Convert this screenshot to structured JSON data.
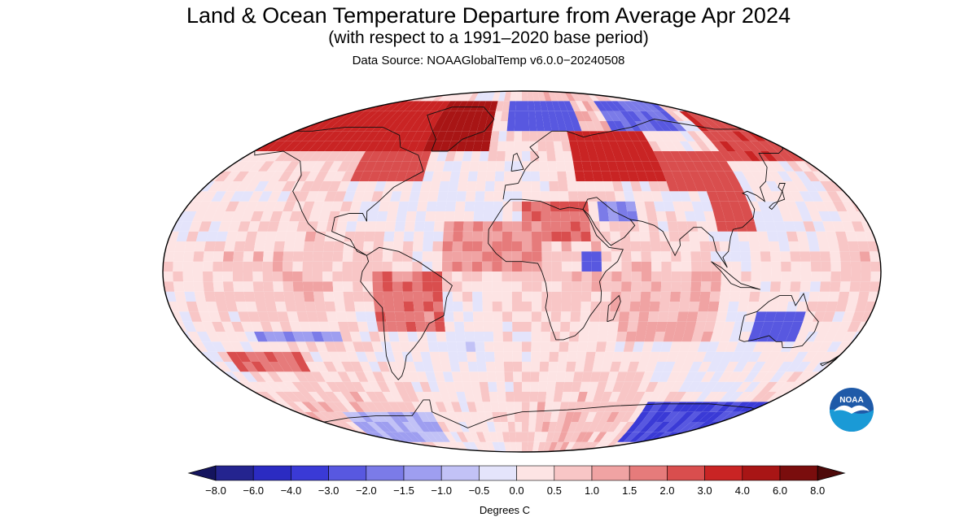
{
  "title": "Land & Ocean Temperature Departure from Average Apr 2024",
  "subtitle": "(with respect to a 1991–2020 base period)",
  "data_source": "Data Source: NOAAGlobalTemp v6.0.0−20240508",
  "units_label": "Degrees C",
  "logo": {
    "text": "NOAA",
    "icon": "noaa-seagull-logo"
  },
  "projection": "robinson",
  "colorbar": {
    "tick_labels": [
      "−8.0",
      "−6.0",
      "−4.0",
      "−3.0",
      "−2.0",
      "−1.5",
      "−1.0",
      "−0.5",
      "0.0",
      "0.5",
      "1.0",
      "1.5",
      "2.0",
      "3.0",
      "4.0",
      "6.0",
      "8.0"
    ],
    "colors": [
      "#24248f",
      "#2b2bc2",
      "#3a3ad6",
      "#5858e0",
      "#7b7be8",
      "#9e9ef0",
      "#c2c2f6",
      "#e4e4fb",
      "#fde4e4",
      "#f8c6c6",
      "#f0a3a3",
      "#e67b7b",
      "#d94e4e",
      "#c92424",
      "#a81515",
      "#7a0d0d"
    ],
    "arrow_low": "#14145e",
    "arrow_high": "#4d0909"
  },
  "chart_data": {
    "type": "heatmap",
    "title": "Land & Ocean Temperature Departure from Average Apr 2024",
    "subtitle": "(with respect to a 1991–2020 base period)",
    "units": "Degrees C",
    "bins": [
      -8.0,
      -6.0,
      -4.0,
      -3.0,
      -2.0,
      -1.5,
      -1.0,
      -0.5,
      0.0,
      0.5,
      1.0,
      1.5,
      2.0,
      3.0,
      4.0,
      6.0,
      8.0
    ],
    "regions": [
      {
        "name": "arctic-north-america",
        "lon": [
          -170,
          -20
        ],
        "lat": [
          62,
          85
        ],
        "anomaly": 3.5
      },
      {
        "name": "greenland",
        "lon": [
          -60,
          -20
        ],
        "lat": [
          60,
          83
        ],
        "anomaly": 4.5
      },
      {
        "name": "eastern-canada",
        "lon": [
          -95,
          -55
        ],
        "lat": [
          45,
          62
        ],
        "anomaly": 2.5
      },
      {
        "name": "north-atlantic-arctic",
        "lon": [
          -10,
          40
        ],
        "lat": [
          72,
          85
        ],
        "anomaly": -2.5
      },
      {
        "name": "siberia-north",
        "lon": [
          60,
          110
        ],
        "lat": [
          70,
          85
        ],
        "anomaly": -2.0
      },
      {
        "name": "eastern-europe-russia",
        "lon": [
          30,
          80
        ],
        "lat": [
          45,
          68
        ],
        "anomaly": 3.5
      },
      {
        "name": "central-asia",
        "lon": [
          80,
          120
        ],
        "lat": [
          40,
          60
        ],
        "anomaly": 2.5
      },
      {
        "name": "east-siberia",
        "lon": [
          120,
          180
        ],
        "lat": [
          55,
          80
        ],
        "anomaly": 2.8
      },
      {
        "name": "china",
        "lon": [
          100,
          122
        ],
        "lat": [
          22,
          40
        ],
        "anomaly": 2.5
      },
      {
        "name": "middle-east",
        "lon": [
          42,
          62
        ],
        "lat": [
          24,
          36
        ],
        "anomaly": -1.5
      },
      {
        "name": "north-africa",
        "lon": [
          0,
          35
        ],
        "lat": [
          15,
          33
        ],
        "anomaly": 2.0
      },
      {
        "name": "east-africa-cool",
        "lon": [
          30,
          40
        ],
        "lat": [
          0,
          12
        ],
        "anomaly": -2.5
      },
      {
        "name": "south-america",
        "lon": [
          -75,
          -40
        ],
        "lat": [
          -30,
          0
        ],
        "anomaly": 1.8
      },
      {
        "name": "southern-australia",
        "lon": [
          120,
          145
        ],
        "lat": [
          -35,
          -22
        ],
        "anomaly": -2.5
      },
      {
        "name": "south-pacific-west",
        "lon": [
          -160,
          -120
        ],
        "lat": [
          -50,
          -40
        ],
        "anomaly": 2.0
      },
      {
        "name": "south-pacific-cool",
        "lon": [
          -140,
          -95
        ],
        "lat": [
          -35,
          -28
        ],
        "anomaly": -1.5
      },
      {
        "name": "tropical-atlantic",
        "lon": [
          -40,
          10
        ],
        "lat": [
          0,
          25
        ],
        "anomaly": 1.5
      },
      {
        "name": "indian-ocean",
        "lon": [
          50,
          100
        ],
        "lat": [
          -35,
          0
        ],
        "anomaly": 1.0
      },
      {
        "name": "antarctica-east",
        "lon": [
          80,
          170
        ],
        "lat": [
          -85,
          -65
        ],
        "anomaly": -3.0
      },
      {
        "name": "antarctica-west",
        "lon": [
          -120,
          -60
        ],
        "lat": [
          -85,
          -70
        ],
        "anomaly": -1.0
      }
    ]
  }
}
